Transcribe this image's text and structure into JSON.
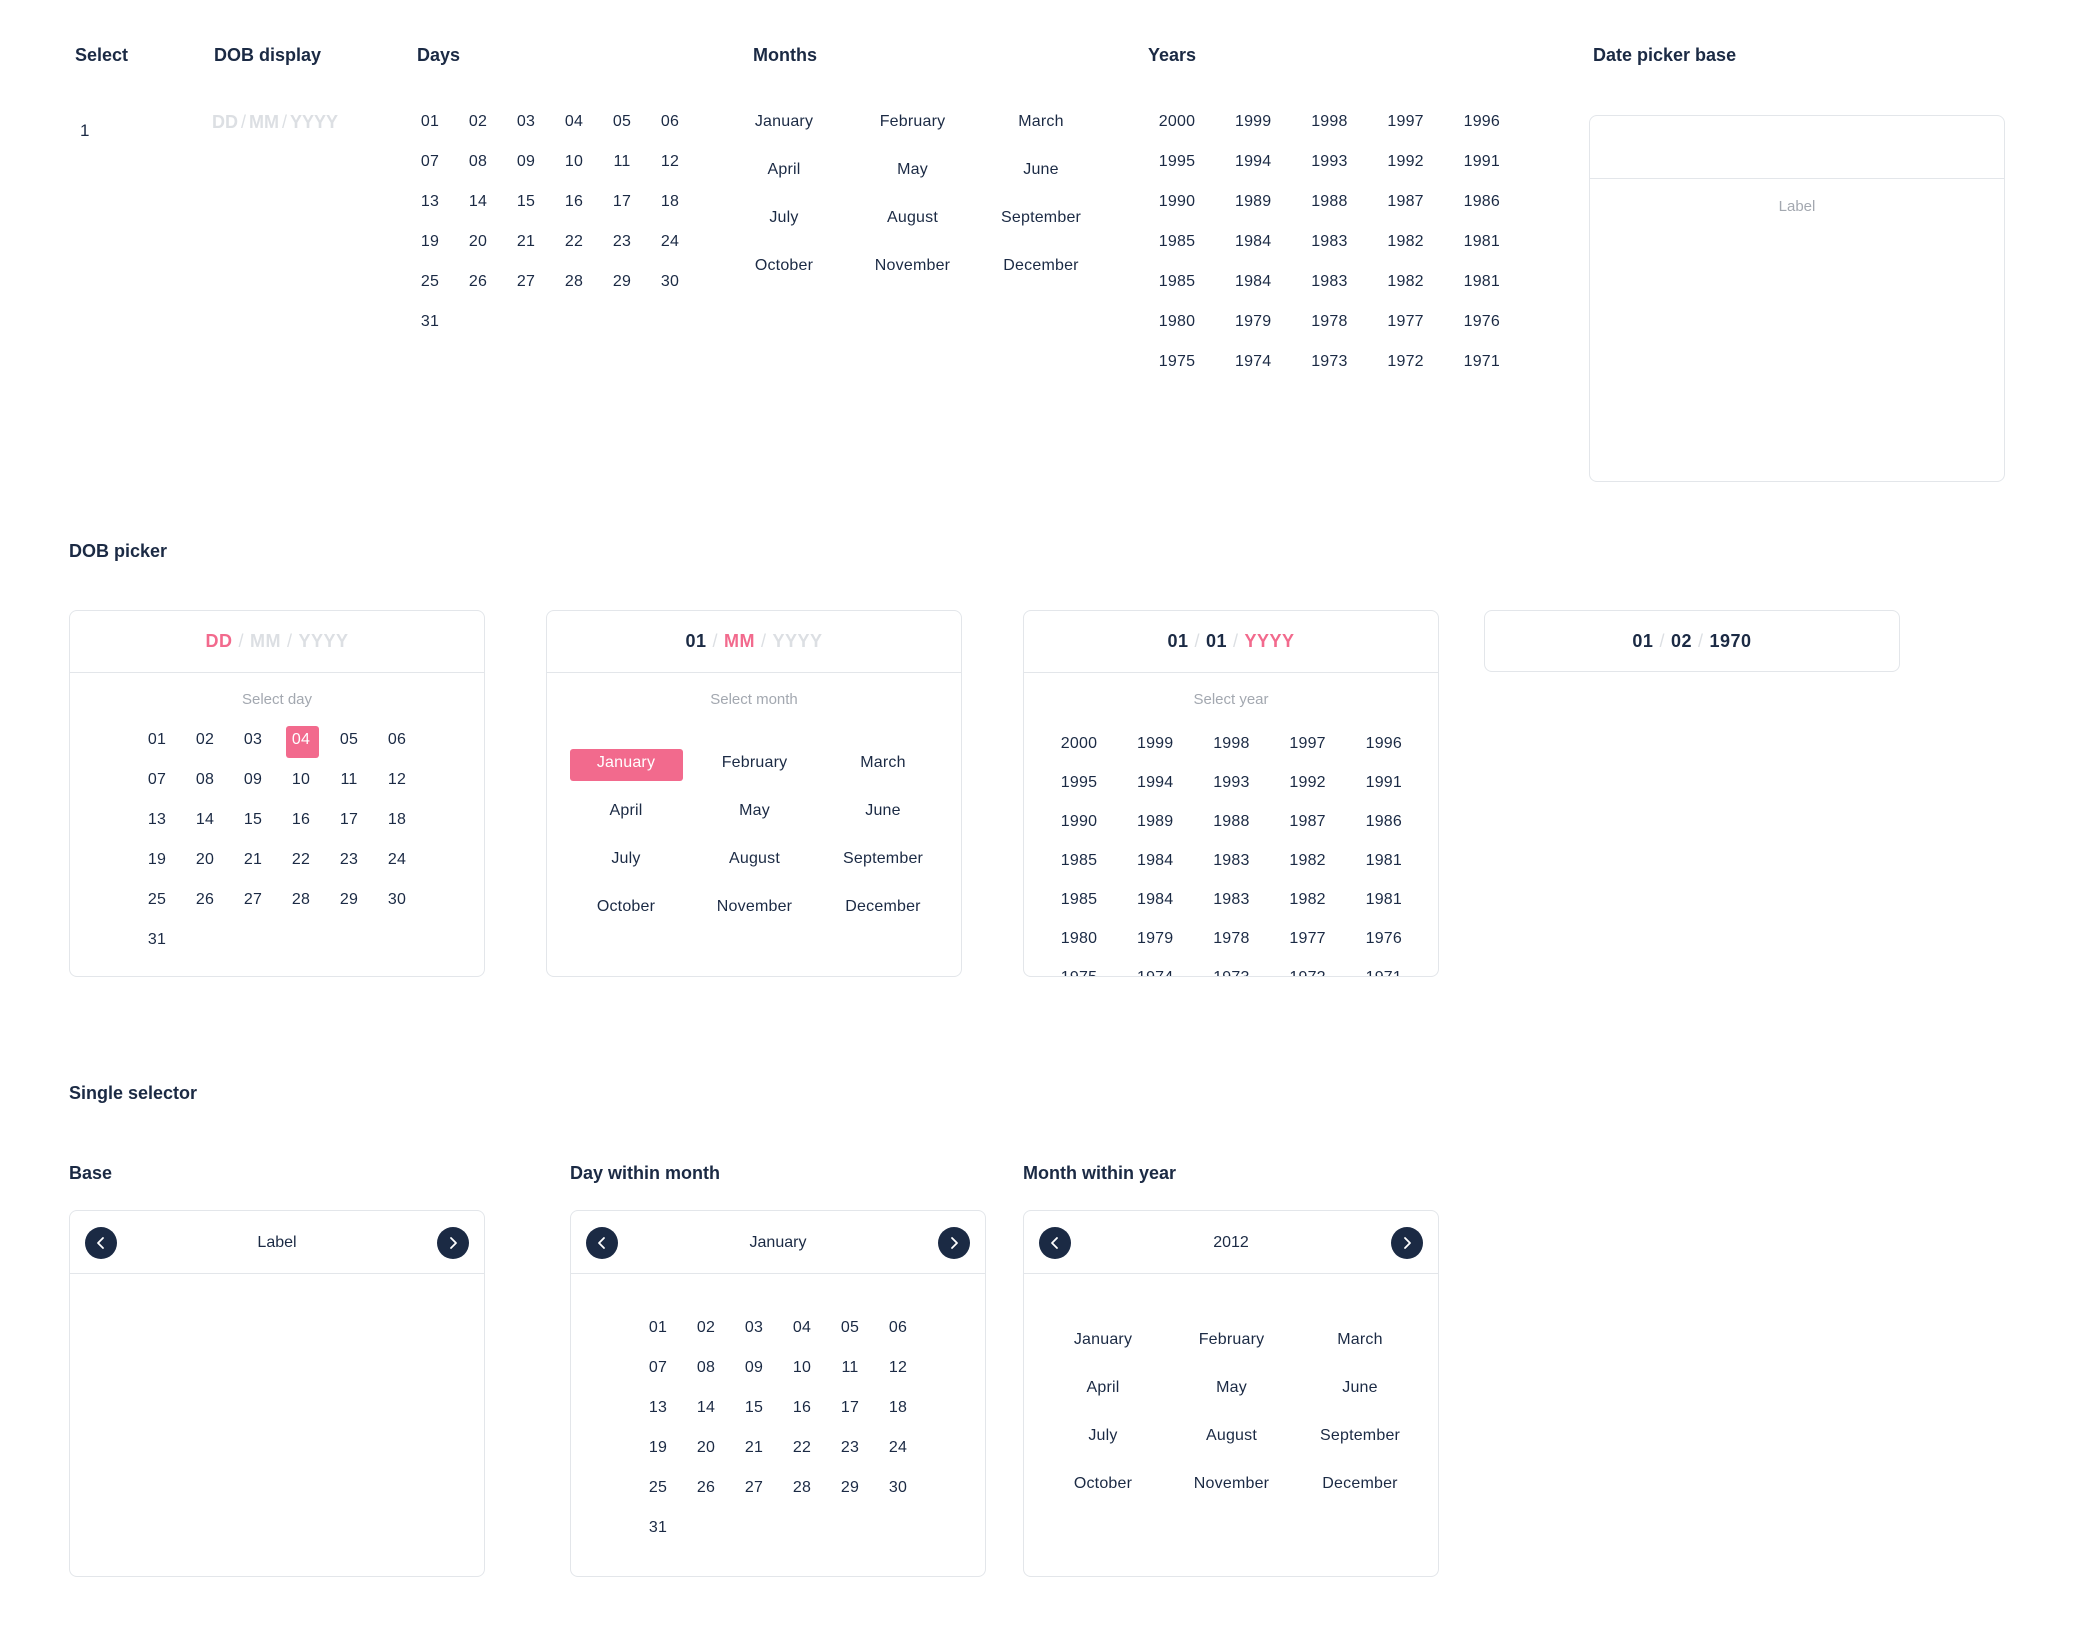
{
  "headings": {
    "select": "Select",
    "dob_display": "DOB display",
    "days": "Days",
    "months": "Months",
    "years": "Years",
    "date_picker_base": "Date picker base",
    "dob_picker": "DOB picker",
    "single_selector": "Single selector",
    "base": "Base",
    "day_within_month": "Day within month",
    "month_within_year": "Month within year"
  },
  "select_value": "1",
  "dob_display": {
    "dd": "DD",
    "mm": "MM",
    "yyyy": "YYYY",
    "separator": "/"
  },
  "days": [
    "01",
    "02",
    "03",
    "04",
    "05",
    "06",
    "07",
    "08",
    "09",
    "10",
    "11",
    "12",
    "13",
    "14",
    "15",
    "16",
    "17",
    "18",
    "19",
    "20",
    "21",
    "22",
    "23",
    "24",
    "25",
    "26",
    "27",
    "28",
    "29",
    "30",
    "31"
  ],
  "months": [
    "January",
    "February",
    "March",
    "April",
    "May",
    "June",
    "July",
    "August",
    "September",
    "October",
    "November",
    "December"
  ],
  "years": [
    "2000",
    "1999",
    "1998",
    "1997",
    "1996",
    "1995",
    "1994",
    "1993",
    "1992",
    "1991",
    "1990",
    "1989",
    "1988",
    "1987",
    "1986",
    "1985",
    "1984",
    "1983",
    "1982",
    "1981",
    "1985",
    "1984",
    "1983",
    "1982",
    "1981",
    "1980",
    "1979",
    "1978",
    "1977",
    "1976",
    "1975",
    "1974",
    "1973",
    "1972",
    "1971"
  ],
  "date_picker_base": {
    "label": "Label"
  },
  "dob_picker": {
    "day_card": {
      "dd": "DD",
      "mm": "MM",
      "yyyy": "YYYY",
      "subtitle": "Select day",
      "selected_day": "04"
    },
    "month_card": {
      "dd": "01",
      "mm": "MM",
      "yyyy": "YYYY",
      "subtitle": "Select month",
      "selected_month": "January"
    },
    "year_card": {
      "dd": "01",
      "mm": "01",
      "yyyy": "YYYY",
      "subtitle": "Select year"
    },
    "result_card": {
      "dd": "01",
      "mm": "02",
      "yyyy": "1970"
    }
  },
  "single_selector": {
    "base": {
      "label": "Label"
    },
    "day_within_month": {
      "label": "January"
    },
    "month_within_year": {
      "label": "2012"
    }
  },
  "colors": {
    "accent": "#f26a8d",
    "text": "#1b2a44",
    "muted": "#dcdfe3",
    "border": "#e3e6ea",
    "nav_button": "#1b2a44"
  }
}
